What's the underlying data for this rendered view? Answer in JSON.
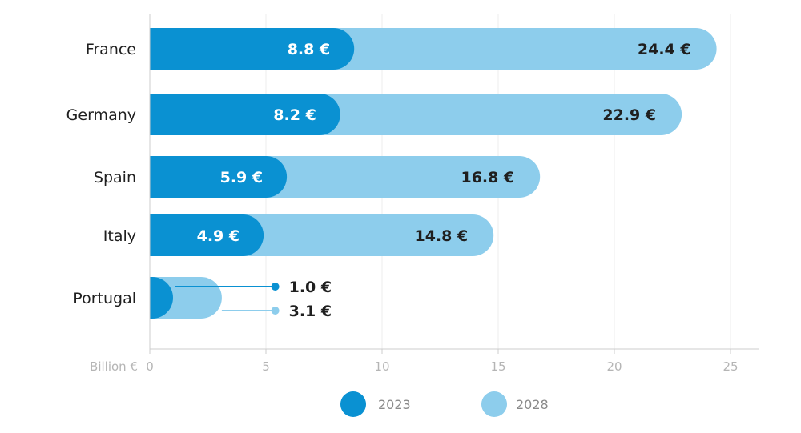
{
  "chart_data": {
    "type": "bar",
    "orientation": "horizontal",
    "overlapping": true,
    "categories": [
      "France",
      "Germany",
      "Spain",
      "Italy",
      "Portugal"
    ],
    "series": [
      {
        "name": "2023",
        "values": [
          8.8,
          8.2,
          5.9,
          4.9,
          1.0
        ],
        "labels": [
          "8.8 €",
          "8.2 €",
          "5.9 €",
          "4.9 €",
          "1.0 €"
        ],
        "color": "#0a91d2"
      },
      {
        "name": "2028",
        "values": [
          24.4,
          22.9,
          16.8,
          14.8,
          3.1
        ],
        "labels": [
          "24.4 €",
          "22.9 €",
          "16.8 €",
          "14.8 €",
          "3.1 €"
        ],
        "color": "#8dcdec"
      }
    ],
    "xlabel": "Billion €",
    "xlim": [
      0,
      26
    ],
    "xticks": [
      "0",
      "5",
      "10",
      "15",
      "20",
      "25"
    ],
    "grid": true,
    "legend_position": "bottom"
  }
}
